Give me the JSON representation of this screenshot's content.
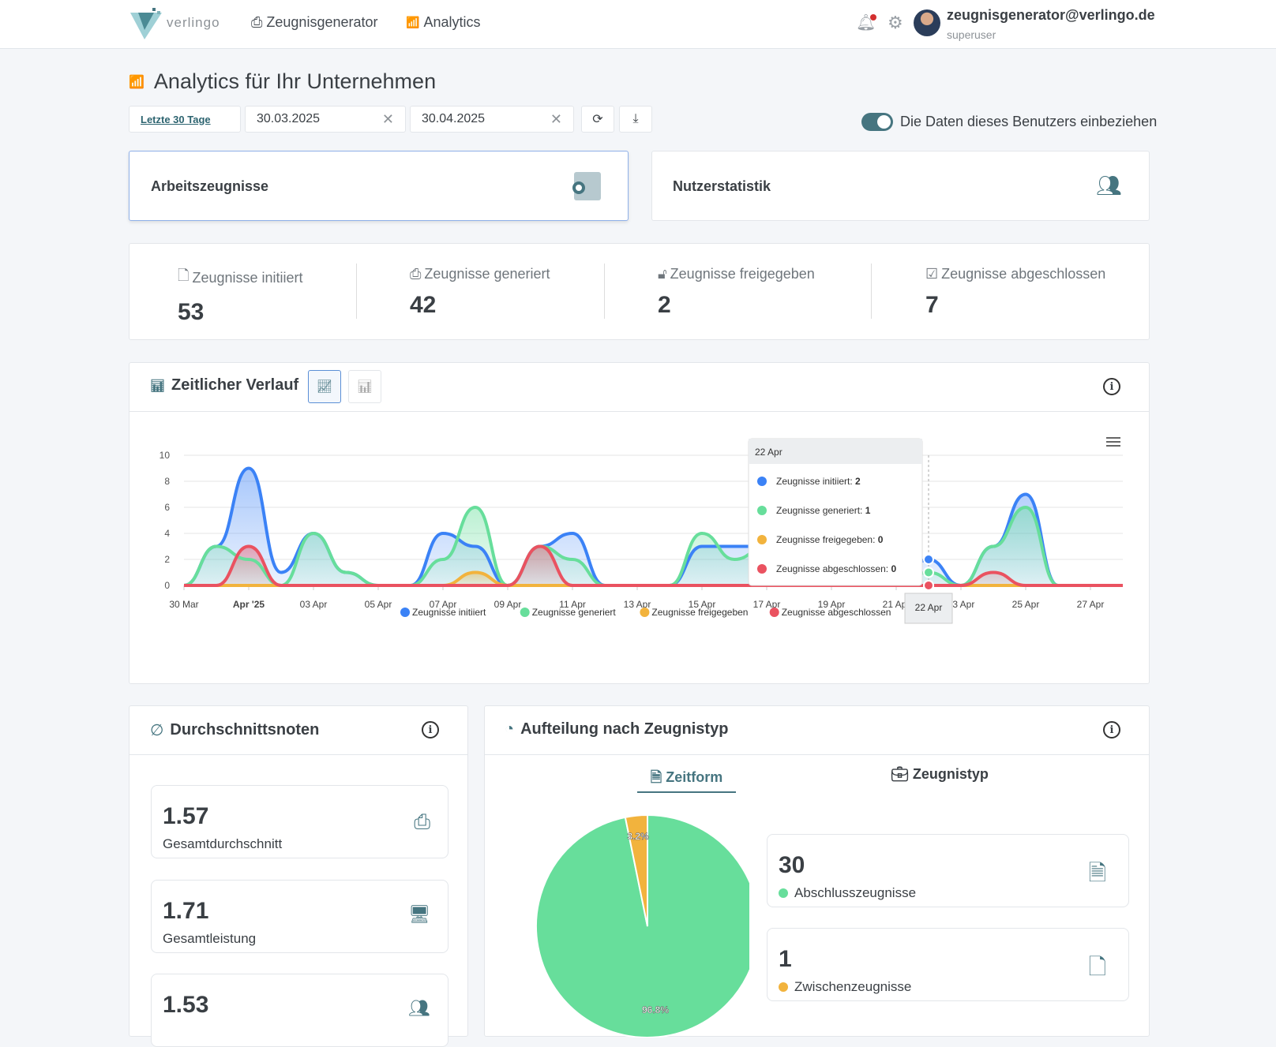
{
  "header": {
    "logo_text": "verlingo",
    "nav": [
      {
        "label": "Zeugnisgenerator",
        "icon": "certificate-icon"
      },
      {
        "label": "Analytics",
        "icon": "chart-icon"
      }
    ],
    "user_email": "zeugnisgenerator@verlingo.de",
    "user_role": "superuser",
    "notification_dot_color": "#d32f2f"
  },
  "page": {
    "title": "Analytics für Ihr Unternehmen"
  },
  "filters": {
    "preset": "Letzte 30 Tage",
    "from": "30.03.2025",
    "to": "30.04.2025",
    "toggle_label": "Die Daten dieses Benutzers einbeziehen",
    "toggle_on": true
  },
  "tabs": [
    {
      "label": "Arbeitszeugnisse",
      "active": true
    },
    {
      "label": "Nutzerstatistik",
      "active": false
    }
  ],
  "stats": [
    {
      "label": "Zeugnisse initiiert",
      "value": "53",
      "icon": "file-plus-icon"
    },
    {
      "label": "Zeugnisse generiert",
      "value": "42",
      "icon": "certificate-icon"
    },
    {
      "label": "Zeugnisse freigegeben",
      "value": "2",
      "icon": "unlock-icon"
    },
    {
      "label": "Zeugnisse abgeschlossen",
      "value": "7",
      "icon": "check-square-icon"
    }
  ],
  "timeline": {
    "title": "Zeitlicher Verlauf"
  },
  "chart_data": {
    "type": "area",
    "x": [
      "30 Mar",
      "31 Mar",
      "01 Apr",
      "02 Apr",
      "03 Apr",
      "04 Apr",
      "05 Apr",
      "06 Apr",
      "07 Apr",
      "08 Apr",
      "09 Apr",
      "10 Apr",
      "11 Apr",
      "12 Apr",
      "13 Apr",
      "14 Apr",
      "15 Apr",
      "16 Apr",
      "17 Apr",
      "18 Apr",
      "19 Apr",
      "20 Apr",
      "21 Apr",
      "22 Apr",
      "23 Apr",
      "24 Apr",
      "25 Apr",
      "26 Apr",
      "27 Apr",
      "28 Apr"
    ],
    "tick_labels": [
      "30 Mar",
      "Apr '25",
      "03 Apr",
      "05 Apr",
      "07 Apr",
      "09 Apr",
      "11 Apr",
      "13 Apr",
      "15 Apr",
      "17 Apr",
      "19 Apr",
      "21 Apr",
      "23 Apr",
      "25 Apr",
      "27 Apr"
    ],
    "ylim": [
      0,
      10
    ],
    "yticks": [
      0,
      2,
      4,
      6,
      8,
      10
    ],
    "grid": true,
    "legend": "bottom",
    "series": [
      {
        "name": "Zeugnisse initiiert",
        "color": "#3b82f6",
        "values": [
          0,
          3,
          9,
          1,
          4,
          1,
          0,
          0,
          4,
          3,
          0,
          3,
          4,
          0,
          0,
          0,
          3,
          3,
          3,
          0,
          0,
          0,
          0,
          2,
          0,
          3,
          7,
          0,
          0,
          0
        ]
      },
      {
        "name": "Zeugnisse generiert",
        "color": "#67de9b",
        "values": [
          0,
          3,
          2,
          0,
          4,
          1,
          0,
          0,
          2,
          6,
          0,
          3,
          2,
          0,
          0,
          0,
          4,
          2,
          3,
          0,
          0,
          0,
          0,
          1,
          0,
          3,
          6,
          0,
          0,
          0
        ]
      },
      {
        "name": "Zeugnisse freigegeben",
        "color": "#f2b33d",
        "values": [
          0,
          0,
          0,
          0,
          0,
          0,
          0,
          0,
          0,
          1,
          0,
          0,
          0,
          0,
          0,
          0,
          0,
          0,
          0,
          0,
          1,
          0,
          0,
          0,
          0,
          0,
          0,
          0,
          0,
          0
        ]
      },
      {
        "name": "Zeugnisse abgeschlossen",
        "color": "#ea5260",
        "values": [
          0,
          0,
          3,
          0,
          0,
          0,
          0,
          0,
          0,
          0,
          0,
          3,
          0,
          0,
          0,
          0,
          0,
          0,
          0,
          0,
          0,
          0,
          0,
          0,
          0,
          1,
          0,
          0,
          0,
          0
        ]
      }
    ],
    "tooltip": {
      "title": "22 Apr",
      "rows": [
        {
          "label": "Zeugnisse initiiert:",
          "value": "2"
        },
        {
          "label": "Zeugnisse generiert:",
          "value": "1"
        },
        {
          "label": "Zeugnisse freigegeben:",
          "value": "0"
        },
        {
          "label": "Zeugnisse abgeschlossen:",
          "value": "0"
        }
      ],
      "x_label": "22 Apr"
    }
  },
  "averages": {
    "title": "Durchschnittsnoten",
    "items": [
      {
        "value": "1.57",
        "label": "Gesamtdurchschnitt"
      },
      {
        "value": "1.71",
        "label": "Gesamtleistung"
      },
      {
        "value": "1.53",
        "label": ""
      }
    ]
  },
  "split": {
    "title": "Aufteilung nach Zeugnistyp",
    "tabs": [
      "Zeitform",
      "Zeugnistyp"
    ],
    "pie": [
      {
        "label": "96.8%",
        "value": 96.8,
        "color": "#67de9b"
      },
      {
        "label": "3.2%",
        "value": 3.2,
        "color": "#f2b33d"
      }
    ],
    "items": [
      {
        "value": "30",
        "label": "Abschlusszeugnisse",
        "color": "#67de9b"
      },
      {
        "value": "1",
        "label": "Zwischenzeugnisse",
        "color": "#f2b33d"
      }
    ]
  }
}
